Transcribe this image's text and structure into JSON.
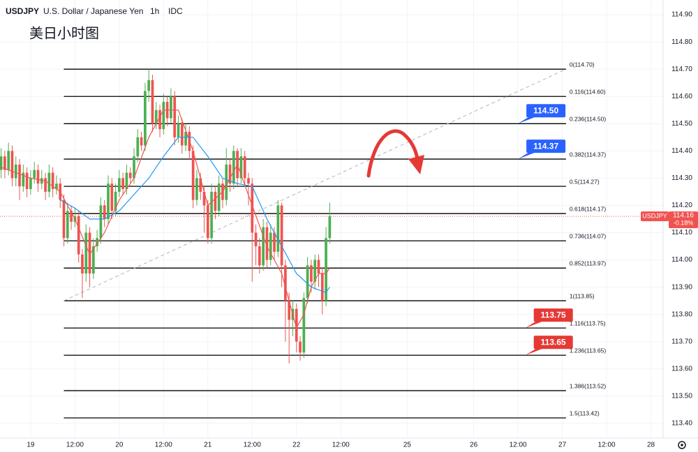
{
  "chart_data": {
    "type": "candlestick",
    "symbol": "USDJPY",
    "description": "U.S. Dollar / Japanese Yen",
    "interval": "1h",
    "source": "IDC",
    "title": "美日小时图",
    "up_color": "#4caf50",
    "down_color": "#ef5350",
    "xlim": [
      -8.3,
      171.3
    ],
    "ylim": [
      113.346,
      114.954
    ],
    "xticks": [
      {
        "value": 0,
        "label": "19"
      },
      {
        "value": 12,
        "label": "12:00"
      },
      {
        "value": 24,
        "label": "20"
      },
      {
        "value": 36,
        "label": "12:00"
      },
      {
        "value": 48,
        "label": "21"
      },
      {
        "value": 60,
        "label": "12:00"
      },
      {
        "value": 72,
        "label": "22"
      },
      {
        "value": 84,
        "label": "12:00"
      },
      {
        "value": 102,
        "label": "25"
      },
      {
        "value": 120,
        "label": "26"
      },
      {
        "value": 132,
        "label": "12:00"
      },
      {
        "value": 144,
        "label": "27"
      },
      {
        "value": 156,
        "label": "12:00"
      },
      {
        "value": 168,
        "label": "28"
      }
    ],
    "yticks": [
      {
        "value": 114.9,
        "label": "114.90"
      },
      {
        "value": 114.8,
        "label": "114.80"
      },
      {
        "value": 114.7,
        "label": "114.70"
      },
      {
        "value": 114.6,
        "label": "114.60"
      },
      {
        "value": 114.5,
        "label": "114.50"
      },
      {
        "value": 114.4,
        "label": "114.40"
      },
      {
        "value": 114.3,
        "label": "114.30"
      },
      {
        "value": 114.2,
        "label": "114.20"
      },
      {
        "value": 114.1,
        "label": "114.10"
      },
      {
        "value": 114.0,
        "label": "114.00"
      },
      {
        "value": 113.9,
        "label": "113.90"
      },
      {
        "value": 113.8,
        "label": "113.80"
      },
      {
        "value": 113.7,
        "label": "113.70"
      },
      {
        "value": 113.6,
        "label": "113.60"
      },
      {
        "value": 113.5,
        "label": "113.50"
      },
      {
        "value": 113.4,
        "label": "113.40"
      }
    ],
    "grid": true,
    "x": [
      -8,
      -7,
      -6,
      -5,
      -4,
      -3,
      -2,
      -1,
      0,
      1,
      2,
      3,
      4,
      5,
      6,
      7,
      8,
      9,
      10,
      11,
      12,
      13,
      14,
      15,
      16,
      17,
      18,
      19,
      20,
      21,
      22,
      23,
      24,
      25,
      26,
      27,
      28,
      29,
      30,
      31,
      32,
      33,
      34,
      35,
      36,
      37,
      38,
      39,
      40,
      41,
      42,
      43,
      44,
      45,
      46,
      47,
      48,
      49,
      50,
      51,
      52,
      53,
      54,
      55,
      56,
      57,
      58,
      59,
      60,
      61,
      62,
      63,
      64,
      65,
      66,
      67,
      68,
      69,
      70,
      71,
      72,
      73,
      74,
      75,
      76,
      77,
      78,
      79,
      80,
      81
    ],
    "open": [
      114.33,
      114.38,
      114.33,
      114.4,
      114.3,
      114.35,
      114.27,
      114.32,
      114.26,
      114.3,
      114.33,
      114.28,
      114.3,
      114.25,
      114.32,
      114.26,
      114.28,
      114.22,
      114.08,
      114.18,
      114.14,
      114.16,
      114.02,
      113.95,
      114.1,
      113.95,
      114.05,
      114.08,
      114.2,
      114.15,
      114.28,
      114.18,
      114.25,
      114.3,
      114.26,
      114.32,
      114.3,
      114.38,
      114.45,
      114.42,
      114.62,
      114.66,
      114.5,
      114.55,
      114.48,
      114.58,
      114.52,
      114.6,
      114.45,
      114.5,
      114.42,
      114.47,
      114.4,
      114.22,
      114.3,
      114.25,
      114.2,
      114.08,
      114.25,
      114.18,
      114.28,
      114.22,
      114.35,
      114.28,
      114.4,
      114.3,
      114.38,
      114.3,
      114.28,
      114.1,
      114.05,
      113.98,
      114.12,
      114.0,
      114.1,
      114.03,
      114.2,
      113.98,
      113.85,
      113.78,
      113.82,
      113.7,
      113.66,
      113.86,
      113.98,
      113.92,
      114.0,
      113.95,
      113.85,
      114.08
    ],
    "high": [
      114.41,
      114.4,
      114.43,
      114.42,
      114.38,
      114.37,
      114.35,
      114.34,
      114.33,
      114.36,
      114.35,
      114.33,
      114.32,
      114.35,
      114.34,
      114.31,
      114.3,
      114.24,
      114.21,
      114.2,
      114.19,
      114.18,
      114.04,
      114.13,
      114.12,
      114.08,
      114.11,
      114.23,
      114.22,
      114.31,
      114.3,
      114.28,
      114.33,
      114.32,
      114.35,
      114.34,
      114.41,
      114.48,
      114.47,
      114.65,
      114.7,
      114.68,
      114.58,
      114.57,
      114.61,
      114.6,
      114.63,
      114.62,
      114.53,
      114.52,
      114.5,
      114.49,
      114.42,
      114.33,
      114.32,
      114.27,
      114.22,
      114.28,
      114.27,
      114.31,
      114.3,
      114.41,
      114.37,
      114.42,
      114.41,
      114.41,
      114.4,
      114.32,
      114.3,
      114.13,
      114.08,
      114.15,
      114.14,
      114.13,
      114.12,
      114.22,
      114.21,
      114.0,
      113.88,
      113.85,
      113.84,
      113.72,
      113.88,
      114.01,
      114.0,
      114.02,
      114.02,
      113.97,
      114.12,
      114.21
    ],
    "low": [
      114.3,
      114.3,
      114.31,
      114.27,
      114.27,
      114.22,
      114.25,
      114.23,
      114.24,
      114.28,
      114.25,
      114.26,
      114.22,
      114.23,
      114.23,
      114.24,
      114.19,
      114.05,
      114.06,
      114.11,
      114.12,
      113.99,
      113.86,
      113.92,
      113.9,
      113.93,
      114.03,
      114.06,
      114.12,
      114.13,
      114.15,
      114.16,
      114.23,
      114.24,
      114.24,
      114.28,
      114.28,
      114.36,
      114.4,
      114.4,
      114.58,
      114.47,
      114.48,
      114.45,
      114.46,
      114.49,
      114.5,
      114.42,
      114.43,
      114.39,
      114.4,
      114.37,
      114.19,
      114.2,
      114.22,
      114.1,
      114.06,
      114.06,
      114.15,
      114.16,
      114.19,
      114.2,
      114.25,
      114.26,
      114.27,
      114.28,
      114.27,
      114.2,
      113.92,
      113.98,
      113.95,
      113.96,
      113.97,
      113.98,
      114.0,
      114.01,
      113.9,
      113.7,
      113.62,
      113.72,
      113.66,
      113.63,
      113.64,
      113.84,
      113.88,
      113.89,
      113.9,
      113.8,
      113.83,
      114.06
    ],
    "close": [
      114.38,
      114.33,
      114.4,
      114.3,
      114.35,
      114.27,
      114.32,
      114.26,
      114.3,
      114.33,
      114.28,
      114.3,
      114.25,
      114.32,
      114.26,
      114.28,
      114.22,
      114.08,
      114.18,
      114.14,
      114.16,
      114.02,
      113.95,
      114.1,
      113.95,
      114.05,
      114.08,
      114.2,
      114.15,
      114.28,
      114.18,
      114.25,
      114.3,
      114.26,
      114.32,
      114.3,
      114.38,
      114.45,
      114.42,
      114.62,
      114.66,
      114.5,
      114.55,
      114.48,
      114.58,
      114.52,
      114.6,
      114.45,
      114.5,
      114.42,
      114.47,
      114.4,
      114.22,
      114.3,
      114.25,
      114.2,
      114.08,
      114.25,
      114.18,
      114.28,
      114.22,
      114.35,
      114.28,
      114.4,
      114.3,
      114.38,
      114.3,
      114.28,
      114.1,
      114.05,
      113.98,
      114.12,
      114.0,
      114.1,
      114.03,
      114.2,
      113.98,
      113.85,
      113.78,
      113.82,
      113.7,
      113.66,
      113.86,
      113.98,
      113.92,
      114.0,
      113.95,
      113.85,
      114.08,
      114.16
    ],
    "moving_averages": [
      {
        "color": "#ef5350",
        "x": [
          -8,
          -4,
          0,
          4,
          8,
          12,
          16,
          20,
          24,
          28,
          32,
          36,
          40,
          44,
          48,
          52,
          56,
          60,
          64,
          68,
          70,
          72,
          74,
          76,
          78,
          80,
          81
        ],
        "values": [
          114.34,
          114.32,
          114.3,
          114.29,
          114.25,
          114.15,
          114.02,
          114.1,
          114.22,
          114.3,
          114.45,
          114.55,
          114.55,
          114.4,
          114.2,
          114.25,
          114.35,
          114.2,
          114.05,
          113.95,
          113.85,
          113.75,
          113.8,
          113.9,
          113.95,
          113.95,
          113.97
        ]
      },
      {
        "color": "#2196f3",
        "x": [
          8,
          12,
          16,
          20,
          24,
          28,
          32,
          36,
          40,
          44,
          48,
          52,
          56,
          60,
          64,
          68,
          72,
          76,
          80,
          81
        ],
        "values": [
          114.22,
          114.19,
          114.15,
          114.15,
          114.18,
          114.24,
          114.3,
          114.38,
          114.45,
          114.45,
          114.38,
          114.3,
          114.28,
          114.27,
          114.15,
          114.05,
          113.95,
          113.9,
          113.88,
          113.9
        ]
      }
    ],
    "fib_x": [
      9,
      145
    ],
    "fib_levels": [
      {
        "value": 114.7,
        "label": "0(114.70)"
      },
      {
        "value": 114.6,
        "label": "0.116(114.60)"
      },
      {
        "value": 114.5,
        "label": "0.236(114.50)"
      },
      {
        "value": 114.37,
        "label": "0.382(114.37)"
      },
      {
        "value": 114.27,
        "label": "0.5(114.27)"
      },
      {
        "value": 114.17,
        "label": "0.618(114.17)"
      },
      {
        "value": 114.07,
        "label": "0.736(114.07)"
      },
      {
        "value": 113.97,
        "label": "0.852(113.97)"
      },
      {
        "value": 113.85,
        "label": "1(113.85)"
      },
      {
        "value": 113.75,
        "label": "1.116(113.75)"
      },
      {
        "value": 113.65,
        "label": "1.236(113.65)"
      },
      {
        "value": 113.52,
        "label": "1.386(113.52)"
      },
      {
        "value": 113.42,
        "label": "1.5(113.42)"
      }
    ],
    "trendline": {
      "x": [
        9,
        145
      ],
      "y": [
        113.85,
        114.7
      ]
    },
    "annotations": [
      {
        "x": 132,
        "value": 114.5,
        "label": "114.50",
        "color": "#2962ff"
      },
      {
        "x": 132,
        "value": 114.37,
        "label": "114.37",
        "color": "#2962ff"
      },
      {
        "x": 134,
        "value": 113.75,
        "label": "113.75",
        "color": "#e53935"
      },
      {
        "x": 134,
        "value": 113.65,
        "label": "113.65",
        "color": "#e53935"
      }
    ],
    "last": {
      "value": 114.16,
      "label": "114.16"
    },
    "change": {
      "value": -0.18,
      "label": "-0.18%"
    }
  }
}
